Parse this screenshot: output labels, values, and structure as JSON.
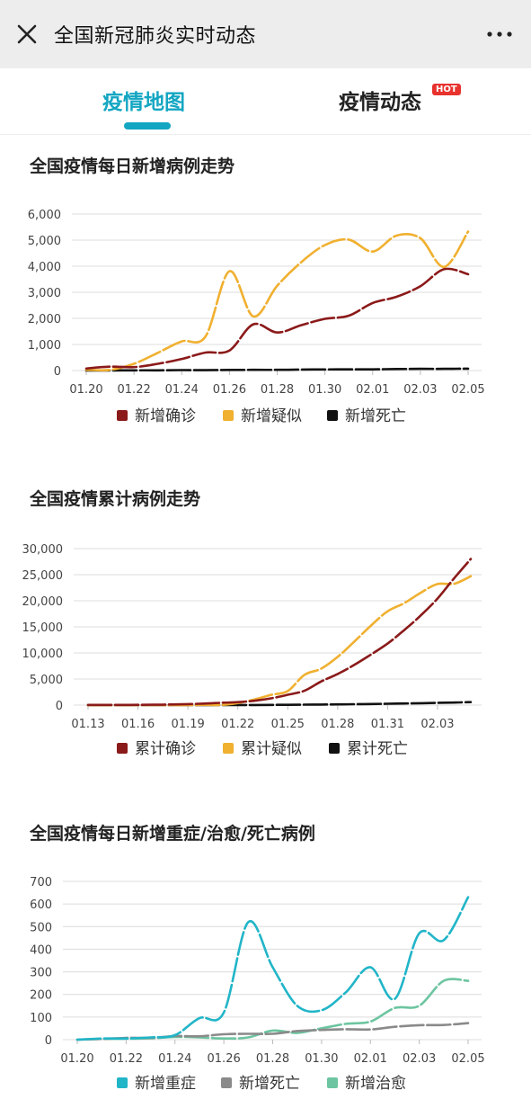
{
  "header": {
    "title": "全国新冠肺炎实时动态",
    "close_icon": "close-icon",
    "more_icon": "more-icon"
  },
  "tabs": [
    {
      "label": "疫情地图",
      "active": true
    },
    {
      "label": "疫情动态",
      "badge": "HOT"
    }
  ],
  "colors": {
    "accent": "#13a6c2",
    "confirmed": "#8b1a1a",
    "suspected": "#f0b030",
    "death": "#111111",
    "severe": "#21b5c8",
    "death_gray": "#8a8a8a",
    "cured": "#6cc5a0",
    "hot_badge": "#e8322d"
  },
  "chart_data": [
    {
      "type": "line",
      "title": "全国疫情每日新增病例走势",
      "x": [
        "01.20",
        "01.21",
        "01.22",
        "01.23",
        "01.24",
        "01.25",
        "01.26",
        "01.27",
        "01.28",
        "01.29",
        "01.30",
        "01.31",
        "02.01",
        "02.02",
        "02.03",
        "02.04",
        "02.05"
      ],
      "xticks": [
        "01.20",
        "01.22",
        "01.24",
        "01.26",
        "01.28",
        "01.30",
        "02.01",
        "02.03",
        "02.05"
      ],
      "yticks": [
        "6,000",
        "5,000",
        "4,000",
        "3,000",
        "2,000",
        "1,000",
        "0"
      ],
      "ylim": [
        0,
        6000
      ],
      "legend_position": "bottom",
      "series": [
        {
          "name": "新增确诊",
          "color": "#8b1a1a",
          "values": [
            77,
            149,
            131,
            259,
            444,
            688,
            769,
            1771,
            1459,
            1737,
            1982,
            2102,
            2590,
            2829,
            3235,
            3887,
            3694
          ]
        },
        {
          "name": "新增疑似",
          "color": "#f0b030",
          "values": [
            27,
            26,
            257,
            680,
            1118,
            1309,
            3806,
            2077,
            3248,
            4148,
            4812,
            5019,
            4562,
            5173,
            5072,
            3971,
            5328
          ]
        },
        {
          "name": "新增死亡",
          "color": "#111111",
          "values": [
            0,
            3,
            8,
            8,
            16,
            15,
            24,
            26,
            26,
            38,
            43,
            46,
            45,
            57,
            64,
            65,
            73
          ]
        }
      ]
    },
    {
      "type": "line",
      "title": "全国疫情累计病例走势",
      "x": [
        "01.13",
        "01.14",
        "01.15",
        "01.16",
        "01.17",
        "01.18",
        "01.19",
        "01.20",
        "01.21",
        "01.22",
        "01.23",
        "01.24",
        "01.25",
        "01.26",
        "01.27",
        "01.28",
        "01.29",
        "01.30",
        "01.31",
        "02.01",
        "02.02",
        "02.03",
        "02.04",
        "02.05"
      ],
      "xticks": [
        "01.13",
        "01.16",
        "01.19",
        "01.22",
        "01.25",
        "01.28",
        "01.31",
        "02.03"
      ],
      "yticks": [
        "30,000",
        "25,000",
        "20,000",
        "15,000",
        "10,000",
        "5,000",
        "0"
      ],
      "ylim": [
        0,
        30000
      ],
      "legend_position": "bottom",
      "series": [
        {
          "name": "累计确诊",
          "color": "#8b1a1a",
          "values": [
            41,
            41,
            41,
            45,
            62,
            121,
            198,
            291,
            440,
            571,
            830,
            1287,
            1975,
            2744,
            4515,
            5974,
            7711,
            9692,
            11791,
            14380,
            17205,
            20438,
            24324,
            28018
          ]
        },
        {
          "name": "累计疑似",
          "color": "#f0b030",
          "values": [
            0,
            0,
            0,
            0,
            0,
            0,
            0,
            54,
            37,
            393,
            1072,
            1965,
            2684,
            5794,
            6973,
            9239,
            12167,
            15238,
            17988,
            19544,
            21558,
            23214,
            23260,
            24702
          ]
        },
        {
          "name": "累计死亡",
          "color": "#111111",
          "values": [
            1,
            1,
            2,
            2,
            2,
            3,
            3,
            6,
            9,
            17,
            25,
            41,
            56,
            80,
            106,
            132,
            170,
            213,
            259,
            304,
            361,
            425,
            490,
            563
          ]
        }
      ]
    },
    {
      "type": "line",
      "title": "全国疫情每日新增重症/治愈/死亡病例",
      "x": [
        "01.20",
        "01.21",
        "01.22",
        "01.23",
        "01.24",
        "01.25",
        "01.26",
        "01.27",
        "01.28",
        "01.29",
        "01.30",
        "01.31",
        "02.01",
        "02.02",
        "02.03",
        "02.04",
        "02.05"
      ],
      "xticks": [
        "01.20",
        "01.22",
        "01.24",
        "01.26",
        "01.28",
        "01.30",
        "02.01",
        "02.03",
        "02.05"
      ],
      "yticks": [
        "700",
        "600",
        "500",
        "400",
        "300",
        "200",
        "100",
        "0"
      ],
      "ylim": [
        0,
        700
      ],
      "legend_position": "bottom",
      "series": [
        {
          "name": "新增重症",
          "color": "#21b5c8",
          "values": [
            0,
            5,
            5,
            10,
            20,
            95,
            120,
            520,
            320,
            150,
            130,
            210,
            320,
            180,
            470,
            440,
            630
          ]
        },
        {
          "name": "新增死亡",
          "color": "#8a8a8a",
          "values": [
            0,
            3,
            8,
            8,
            16,
            15,
            24,
            26,
            26,
            38,
            43,
            46,
            45,
            57,
            64,
            65,
            73
          ]
        },
        {
          "name": "新增治愈",
          "color": "#6cc5a0",
          "values": [
            0,
            3,
            4,
            6,
            12,
            10,
            5,
            10,
            40,
            30,
            50,
            70,
            80,
            140,
            150,
            260,
            260
          ]
        }
      ]
    }
  ]
}
